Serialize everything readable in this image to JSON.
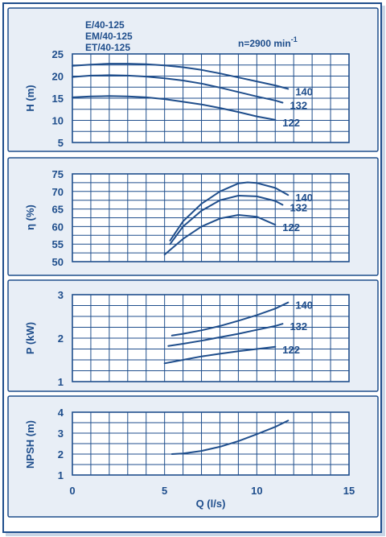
{
  "header": {
    "models": [
      "E/40-125",
      "EM/40-125",
      "ET/40-125"
    ],
    "speed_prefix": "n=2900 min",
    "speed_sup": "-1"
  },
  "colors": {
    "frame": "#1f4e8c",
    "panel_bg": "#e8eef6",
    "plot_bg": "#ffffff",
    "grid": "#1f4e8c",
    "curve": "#1f4e8c",
    "text": "#1f4e8c"
  },
  "chart_data": [
    {
      "type": "line",
      "id": "head",
      "ylabel": "H (m)",
      "ylim": [
        5,
        25
      ],
      "yticks": [
        5,
        10,
        15,
        20,
        25
      ],
      "xlim": [
        0,
        15
      ],
      "grid": true,
      "series": [
        {
          "name": "140",
          "x": [
            0,
            1,
            2,
            3,
            4,
            5,
            6,
            7,
            8,
            9,
            10,
            11,
            11.7
          ],
          "y": [
            22.3,
            22.6,
            22.8,
            22.8,
            22.7,
            22.4,
            22.0,
            21.4,
            20.6,
            19.7,
            18.8,
            17.9,
            17.1
          ]
        },
        {
          "name": "132",
          "x": [
            0,
            1,
            2,
            3,
            4,
            5,
            6,
            7,
            8,
            9,
            10,
            11,
            11.4
          ],
          "y": [
            19.8,
            20.1,
            20.2,
            20.1,
            19.9,
            19.5,
            19.0,
            18.3,
            17.4,
            16.4,
            15.4,
            14.5,
            14.0
          ]
        },
        {
          "name": "122",
          "x": [
            0,
            1,
            2,
            3,
            4,
            5,
            6,
            7,
            8,
            9,
            10,
            11
          ],
          "y": [
            15.2,
            15.4,
            15.5,
            15.4,
            15.2,
            14.8,
            14.2,
            13.6,
            12.8,
            11.9,
            10.9,
            10.1
          ]
        }
      ]
    },
    {
      "type": "line",
      "id": "efficiency",
      "ylabel": "η (%)",
      "ylim": [
        50,
        75
      ],
      "yticks": [
        50,
        55,
        60,
        65,
        70,
        75
      ],
      "xlim": [
        0,
        15
      ],
      "grid": true,
      "series": [
        {
          "name": "140",
          "x": [
            5.3,
            6,
            7,
            8,
            9,
            9.5,
            10,
            11,
            11.7
          ],
          "y": [
            56,
            61.5,
            66.5,
            70,
            72.3,
            72.6,
            72.4,
            71,
            69
          ]
        },
        {
          "name": "132",
          "x": [
            5.3,
            6,
            7,
            8,
            9,
            10,
            11,
            11.4
          ],
          "y": [
            55,
            60,
            64.5,
            67.5,
            68.8,
            68.6,
            67.3,
            66.2
          ]
        },
        {
          "name": "122",
          "x": [
            5.0,
            6,
            7,
            8,
            9,
            10,
            11
          ],
          "y": [
            52,
            56.5,
            60,
            62.3,
            63.3,
            62.8,
            60.5
          ]
        }
      ]
    },
    {
      "type": "line",
      "id": "power",
      "ylabel": "P (kW)",
      "ylim": [
        1,
        3
      ],
      "yticks": [
        1,
        2,
        3
      ],
      "xlim": [
        0,
        15
      ],
      "grid": true,
      "series": [
        {
          "name": "140",
          "x": [
            5.4,
            6,
            7,
            8,
            9,
            10,
            11,
            11.7
          ],
          "y": [
            2.06,
            2.1,
            2.18,
            2.28,
            2.4,
            2.53,
            2.68,
            2.82
          ]
        },
        {
          "name": "132",
          "x": [
            5.2,
            6,
            7,
            8,
            9,
            10,
            11,
            11.4
          ],
          "y": [
            1.82,
            1.87,
            1.94,
            2.02,
            2.1,
            2.19,
            2.28,
            2.33
          ]
        },
        {
          "name": "122",
          "x": [
            5.0,
            6,
            7,
            8,
            9,
            10,
            11
          ],
          "y": [
            1.42,
            1.5,
            1.58,
            1.64,
            1.7,
            1.75,
            1.8
          ]
        }
      ]
    },
    {
      "type": "line",
      "id": "npsh",
      "ylabel": "NPSH (m)",
      "ylim": [
        1,
        4
      ],
      "yticks": [
        1,
        2,
        3,
        4
      ],
      "xlim": [
        0,
        15
      ],
      "xticks": [
        0,
        5,
        10,
        15
      ],
      "xlabel": "Q (l/s)",
      "grid": true,
      "series": [
        {
          "x": [
            5.4,
            6,
            7,
            8,
            9,
            10,
            11,
            11.7
          ],
          "y": [
            2.0,
            2.03,
            2.15,
            2.35,
            2.62,
            2.95,
            3.3,
            3.6
          ]
        }
      ]
    }
  ]
}
